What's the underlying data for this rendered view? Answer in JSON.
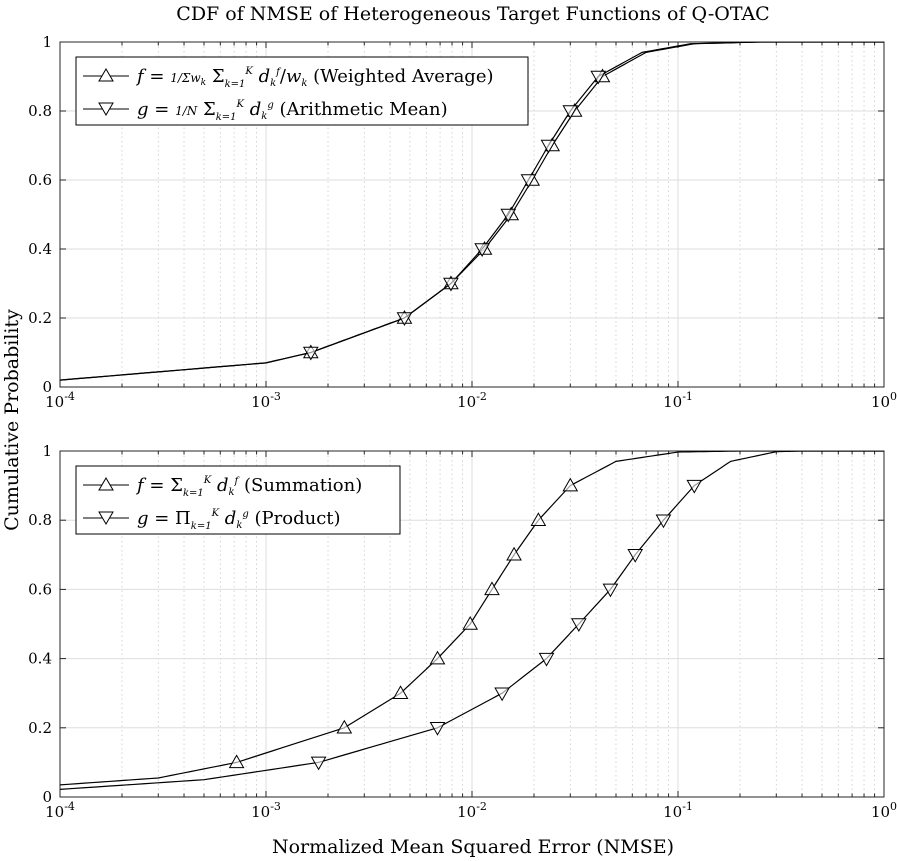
{
  "figure": {
    "title": "CDF of NMSE of Heterogeneous Target Functions of Q-OTAC",
    "ylabel": "Cumulative Probability",
    "xlabel": "Normalized Mean Squared Error (NMSE)"
  },
  "chart_data": [
    {
      "type": "line",
      "x_scale": "log",
      "xlim": [
        0.0001,
        1
      ],
      "ylim": [
        0,
        1
      ],
      "grid": true,
      "legend_position": "top-left",
      "x_tick_labels": [
        "10^-4",
        "10^-3",
        "10^-2",
        "10^-1",
        "10^0"
      ],
      "y_tick_labels": [
        "0",
        "0.2",
        "0.4",
        "0.6",
        "0.8",
        "1"
      ],
      "series": [
        {
          "name": "f = (1/Σw_k) Σ_{k=1}^{K} d_k^f / w_k (Weighted Average)",
          "legend_label": "f = 1/Σw_k Σ_{k=1}^K d_k^f/w_k (Weighted Average)",
          "marker": "triangle-up",
          "points": [
            [
              0.0001,
              0.02
            ],
            [
              0.001,
              0.07
            ],
            [
              0.00165,
              0.1
            ],
            [
              0.0047,
              0.2
            ],
            [
              0.0079,
              0.3
            ],
            [
              0.0115,
              0.4
            ],
            [
              0.0155,
              0.5
            ],
            [
              0.0196,
              0.6
            ],
            [
              0.0245,
              0.7
            ],
            [
              0.0315,
              0.8
            ],
            [
              0.043,
              0.9
            ],
            [
              0.07,
              0.97
            ],
            [
              0.12,
              0.995
            ],
            [
              0.25,
              1.0
            ],
            [
              1,
              1.0
            ]
          ]
        },
        {
          "name": "g = (1/N) Σ_{k=1}^{K} d_k^g (Arithmetic Mean)",
          "legend_label": "g = 1/N Σ_{k=1}^K d_k^g (Arithmetic Mean)",
          "marker": "triangle-down",
          "points": [
            [
              0.0001,
              0.02
            ],
            [
              0.001,
              0.07
            ],
            [
              0.00165,
              0.1
            ],
            [
              0.0047,
              0.2
            ],
            [
              0.0079,
              0.3
            ],
            [
              0.0112,
              0.4
            ],
            [
              0.015,
              0.5
            ],
            [
              0.0188,
              0.6
            ],
            [
              0.0235,
              0.7
            ],
            [
              0.03,
              0.8
            ],
            [
              0.041,
              0.9
            ],
            [
              0.067,
              0.97
            ],
            [
              0.115,
              0.995
            ],
            [
              0.25,
              1.0
            ],
            [
              1,
              1.0
            ]
          ]
        }
      ]
    },
    {
      "type": "line",
      "x_scale": "log",
      "xlim": [
        0.0001,
        1
      ],
      "ylim": [
        0,
        1
      ],
      "grid": true,
      "legend_position": "top-left",
      "x_tick_labels": [
        "10^-4",
        "10^-3",
        "10^-2",
        "10^-1",
        "10^0"
      ],
      "y_tick_labels": [
        "0",
        "0.2",
        "0.4",
        "0.6",
        "0.8",
        "1"
      ],
      "series": [
        {
          "name": "f = Σ_{k=1}^{K} d_k^f (Summation)",
          "legend_label": "f = Σ_{k=1}^K d_k^f (Summation)",
          "marker": "triangle-up",
          "points": [
            [
              0.0001,
              0.035
            ],
            [
              0.0003,
              0.055
            ],
            [
              0.00072,
              0.1
            ],
            [
              0.0024,
              0.2
            ],
            [
              0.0045,
              0.3
            ],
            [
              0.0068,
              0.4
            ],
            [
              0.0098,
              0.5
            ],
            [
              0.0125,
              0.6
            ],
            [
              0.016,
              0.7
            ],
            [
              0.021,
              0.8
            ],
            [
              0.03,
              0.9
            ],
            [
              0.05,
              0.97
            ],
            [
              0.1,
              0.997
            ],
            [
              0.2,
              1.0
            ],
            [
              1,
              1.0
            ]
          ]
        },
        {
          "name": "g = Π_{k=1}^{K} d_k^g (Product)",
          "legend_label": "g = Π_{k=1}^K d_k^g (Product)",
          "marker": "triangle-down",
          "points": [
            [
              0.0001,
              0.022
            ],
            [
              0.0005,
              0.05
            ],
            [
              0.0018,
              0.1
            ],
            [
              0.0068,
              0.2
            ],
            [
              0.014,
              0.3
            ],
            [
              0.023,
              0.4
            ],
            [
              0.033,
              0.5
            ],
            [
              0.047,
              0.6
            ],
            [
              0.062,
              0.7
            ],
            [
              0.085,
              0.8
            ],
            [
              0.12,
              0.9
            ],
            [
              0.18,
              0.97
            ],
            [
              0.3,
              0.998
            ],
            [
              0.4,
              1.0
            ],
            [
              1,
              1.0
            ]
          ]
        }
      ]
    }
  ]
}
